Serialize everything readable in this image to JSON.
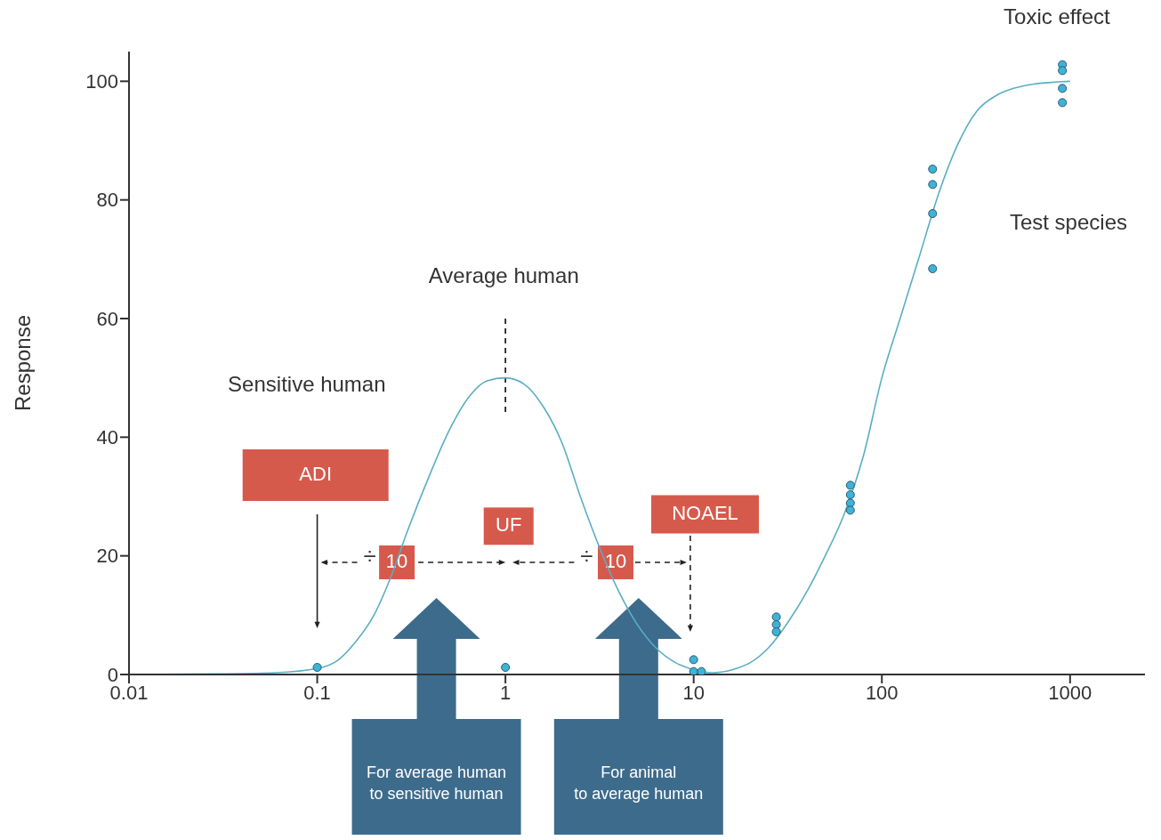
{
  "chart_data": {
    "type": "line",
    "ylabel": "Response",
    "xlim": [
      0.01,
      2500
    ],
    "xticks": [
      0.01,
      0.1,
      1,
      10,
      100,
      1000
    ],
    "ylim": [
      0,
      105
    ],
    "yticks": [
      0,
      20,
      40,
      60,
      80,
      100
    ],
    "log": "x",
    "grid": false,
    "legend": false,
    "series": [
      {
        "type": "line",
        "color": "#222222",
        "marker": "none",
        "line_style": "dashed",
        "x": [
          1,
          1
        ],
        "values": [
          60,
          44
        ]
      },
      {
        "color": "#5aaec4",
        "marker": "none",
        "x": [
          0.01,
          0.03,
          0.06,
          0.1,
          0.13,
          0.16,
          0.2,
          0.25,
          0.3,
          0.4,
          0.5,
          0.63,
          0.8,
          1,
          1.25,
          1.6,
          2,
          2.5,
          3.2,
          4,
          5,
          6.3,
          8,
          10,
          12.5,
          16,
          20,
          25,
          32,
          40,
          50,
          63,
          80,
          100,
          125,
          160,
          200,
          250,
          320,
          400,
          500,
          630,
          1000
        ],
        "values": [
          0,
          0.1,
          0.3,
          1,
          2.5,
          5.5,
          10,
          17,
          24,
          34,
          41,
          46.5,
          49.5,
          50,
          49,
          45,
          39,
          30,
          21,
          14,
          8.5,
          4.5,
          2,
          0.8,
          0.3,
          0.8,
          2,
          4.5,
          9,
          14,
          20,
          27,
          37,
          50,
          60,
          71,
          81,
          89,
          95,
          97.5,
          98.8,
          99.5,
          100
        ]
      },
      {
        "type": "scatter",
        "color": "#3fb3d6",
        "marker": "circle",
        "x": [
          0.1,
          1,
          10,
          10,
          11,
          27.5,
          27.5,
          27.5,
          68,
          68,
          68,
          68,
          186,
          186,
          186,
          186,
          910,
          910,
          910,
          910
        ],
        "values": [
          1.2,
          1.2,
          2.5,
          0.5,
          0.5,
          9.7,
          8.4,
          7.2,
          31.9,
          30.3,
          28.9,
          27.7,
          85.2,
          82.6,
          77.7,
          68.4,
          102.8,
          101.8,
          98.8,
          96.4
        ]
      }
    ],
    "annotations": [
      "Toxic effect",
      "Test species",
      "Average human",
      "Sensitive human",
      "ADI",
      "UF",
      "NOAEL",
      "÷",
      "10",
      "÷",
      "10",
      "For average human\nto sensitive human",
      "For animal\nto average human"
    ]
  }
}
